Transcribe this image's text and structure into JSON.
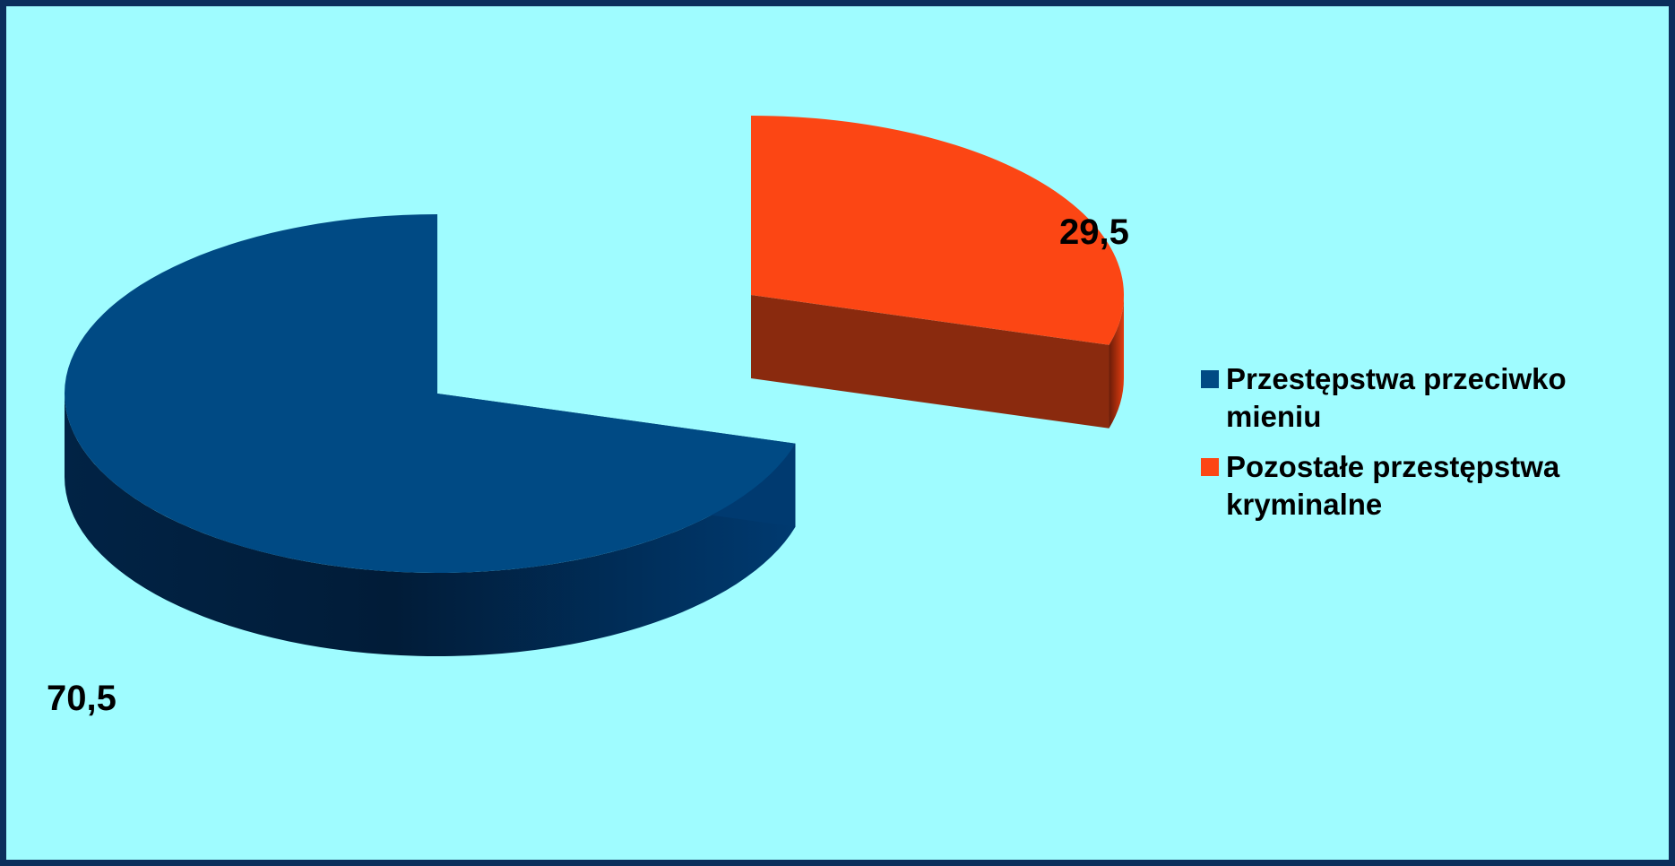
{
  "chart_data": {
    "type": "pie",
    "style": "3d-exploded",
    "slices": [
      {
        "label": "Przestępstwa przeciwko mieniu",
        "value": 70.5,
        "value_label": "70,5",
        "color": "#004a84"
      },
      {
        "label": "Pozostałe przestępstwa kryminalne",
        "value": 29.5,
        "value_label": "29,5",
        "color": "#fc4614"
      }
    ],
    "legend_position": "right",
    "background": "#9ffcff",
    "frame_color": "#0b2f5c"
  }
}
